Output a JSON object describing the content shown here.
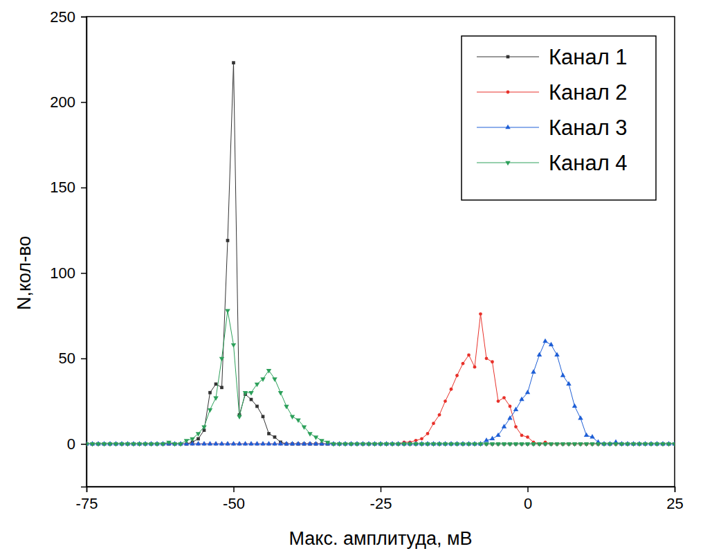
{
  "chart_data": {
    "type": "line",
    "x_label": "Макс. амплитуда, мВ",
    "y_label": "N,кол-во",
    "x": [
      -75,
      -74,
      -73,
      -72,
      -71,
      -70,
      -69,
      -68,
      -67,
      -66,
      -65,
      -64,
      -63,
      -62,
      -61,
      -60,
      -59,
      -58,
      -57,
      -56,
      -55,
      -54,
      -53,
      -52,
      -51,
      -50,
      -49,
      -48,
      -47,
      -46,
      -45,
      -44,
      -43,
      -42,
      -41,
      -40,
      -39,
      -38,
      -37,
      -36,
      -35,
      -34,
      -33,
      -32,
      -31,
      -30,
      -29,
      -28,
      -27,
      -26,
      -25,
      -24,
      -23,
      -22,
      -21,
      -20,
      -19,
      -18,
      -17,
      -16,
      -15,
      -14,
      -13,
      -12,
      -11,
      -10,
      -9,
      -8,
      -7,
      -6,
      -5,
      -4,
      -3,
      -2,
      -1,
      0,
      1,
      2,
      3,
      4,
      5,
      6,
      7,
      8,
      9,
      10,
      11,
      12,
      13,
      14,
      15,
      16,
      17,
      18,
      19,
      20,
      21,
      22,
      23,
      24,
      25
    ],
    "series": [
      {
        "name": "Канал 1",
        "color": "#333333",
        "marker": "square",
        "values": [
          0,
          0,
          0,
          0,
          0,
          0,
          0,
          0,
          0,
          0,
          0,
          0,
          0,
          0,
          0,
          0,
          0,
          0,
          1,
          3,
          8,
          30,
          35,
          33,
          119,
          223,
          17,
          29,
          26,
          22,
          16,
          6,
          4,
          1,
          0,
          0,
          0,
          0,
          0,
          0,
          0,
          0,
          0,
          0,
          0,
          0,
          0,
          0,
          0,
          0,
          0,
          0,
          0,
          0,
          0,
          0,
          0,
          0,
          0,
          0,
          0,
          0,
          0,
          0,
          0,
          0,
          0,
          0,
          0,
          0,
          0,
          0,
          0,
          0,
          0,
          0,
          0,
          0,
          0,
          0,
          0,
          0,
          0,
          0,
          0,
          0,
          0,
          0,
          0,
          0,
          0,
          0,
          0,
          0,
          0,
          0,
          0,
          0,
          0,
          0,
          0
        ]
      },
      {
        "name": "Канал 2",
        "color": "#e8312a",
        "marker": "circle",
        "values": [
          0,
          0,
          0,
          0,
          0,
          0,
          0,
          0,
          0,
          0,
          0,
          0,
          0,
          0,
          0,
          0,
          0,
          0,
          0,
          0,
          0,
          0,
          0,
          0,
          0,
          0,
          0,
          0,
          0,
          0,
          0,
          0,
          0,
          0,
          0,
          0,
          0,
          0,
          0,
          0,
          0,
          0,
          0,
          0,
          0,
          0,
          0,
          0,
          0,
          0,
          0,
          0,
          0,
          0,
          1,
          1,
          2,
          3,
          6,
          12,
          17,
          25,
          32,
          40,
          47,
          52,
          45,
          76,
          50,
          48,
          25,
          27,
          22,
          10,
          5,
          4,
          1,
          0,
          1,
          0,
          0,
          0,
          0,
          0,
          0,
          0,
          0,
          0,
          0,
          0,
          0,
          0,
          0,
          0,
          0,
          0,
          0,
          0,
          0,
          0,
          0
        ]
      },
      {
        "name": "Канал 3",
        "color": "#1f5fd6",
        "marker": "triangle-up",
        "values": [
          0,
          0,
          0,
          0,
          0,
          0,
          0,
          0,
          0,
          0,
          0,
          0,
          0,
          0,
          0,
          0,
          0,
          0,
          0,
          0,
          0,
          0,
          0,
          0,
          0,
          0,
          0,
          0,
          0,
          0,
          0,
          0,
          0,
          0,
          0,
          0,
          0,
          0,
          0,
          0,
          0,
          0,
          0,
          0,
          0,
          0,
          0,
          0,
          0,
          0,
          0,
          0,
          0,
          0,
          0,
          0,
          0,
          0,
          0,
          0,
          0,
          0,
          0,
          0,
          0,
          0,
          0,
          0,
          2,
          3,
          5,
          10,
          15,
          20,
          26,
          30,
          42,
          52,
          60,
          58,
          52,
          40,
          35,
          22,
          15,
          5,
          4,
          1,
          0,
          0,
          1,
          0,
          0,
          0,
          0,
          0,
          0,
          0,
          0,
          0,
          0
        ]
      },
      {
        "name": "Канал 4",
        "color": "#2ca05a",
        "marker": "triangle-down",
        "values": [
          0,
          0,
          0,
          0,
          0,
          0,
          0,
          0,
          0,
          0,
          0,
          0,
          0,
          0,
          1,
          0,
          0,
          2,
          3,
          6,
          10,
          20,
          27,
          50,
          78,
          58,
          16,
          30,
          30,
          35,
          38,
          43,
          38,
          30,
          22,
          16,
          14,
          10,
          6,
          4,
          2,
          1,
          0,
          0,
          0,
          0,
          0,
          0,
          0,
          0,
          0,
          0,
          0,
          0,
          0,
          0,
          0,
          0,
          0,
          0,
          0,
          0,
          0,
          0,
          0,
          0,
          0,
          0,
          0,
          0,
          0,
          0,
          0,
          0,
          0,
          0,
          0,
          0,
          0,
          0,
          0,
          0,
          0,
          0,
          0,
          0,
          0,
          0,
          0,
          0,
          0,
          0,
          0,
          0,
          0,
          0,
          0,
          0,
          0,
          0,
          0
        ]
      }
    ],
    "xlim": [
      -75,
      25
    ],
    "xticks": [
      -75,
      -50,
      -25,
      0,
      25
    ],
    "ylim": [
      -25,
      250
    ],
    "yticks": [
      0,
      50,
      100,
      150,
      200,
      250
    ],
    "legend": "upper right",
    "grid": false
  }
}
